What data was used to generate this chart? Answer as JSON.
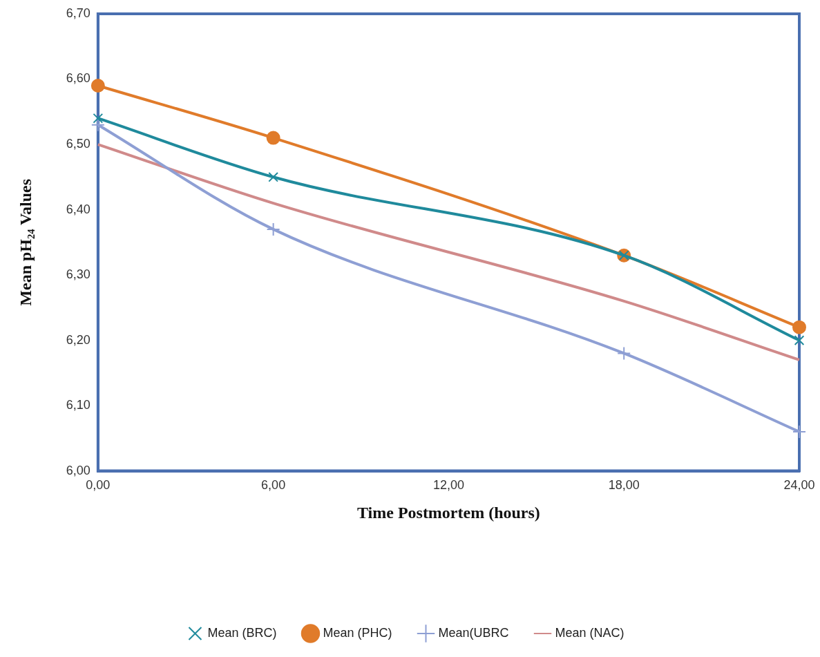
{
  "chart_data": {
    "type": "line",
    "xlabel": "Time Postmortem (hours)",
    "ylabel": "Mean pH₂₄ Values",
    "x": [
      0,
      6,
      18,
      24
    ],
    "series": [
      {
        "name": "Mean (BRC)",
        "color": "#1f8a9c",
        "marker": "cross",
        "values": [
          6.54,
          6.45,
          6.33,
          6.2
        ]
      },
      {
        "name": "Mean (PHC)",
        "color": "#e07b2a",
        "marker": "circle",
        "values": [
          6.59,
          6.51,
          6.33,
          6.22
        ]
      },
      {
        "name": "Mean(UBRC",
        "color": "#8e9fd4",
        "marker": "plus",
        "values": [
          6.53,
          6.37,
          6.18,
          6.06
        ]
      },
      {
        "name": "Mean (NAC)",
        "color": "#d08a8a",
        "marker": "none",
        "values": [
          6.5,
          6.41,
          6.26,
          6.17
        ]
      }
    ],
    "xlim": [
      0,
      24
    ],
    "xticks": [
      {
        "value": 0,
        "label": "0,00"
      },
      {
        "value": 6,
        "label": "6,00"
      },
      {
        "value": 12,
        "label": "12,00"
      },
      {
        "value": 18,
        "label": "18,00"
      },
      {
        "value": 24,
        "label": "24,00"
      }
    ],
    "ylim": [
      6.0,
      6.7
    ],
    "yticks": [
      {
        "value": 6.0,
        "label": "6,00"
      },
      {
        "value": 6.1,
        "label": "6,10"
      },
      {
        "value": 6.2,
        "label": "6,20"
      },
      {
        "value": 6.3,
        "label": "6,30"
      },
      {
        "value": 6.4,
        "label": "6,40"
      },
      {
        "value": 6.5,
        "label": "6,50"
      },
      {
        "value": 6.6,
        "label": "6,60"
      },
      {
        "value": 6.7,
        "label": "6,70"
      }
    ],
    "grid": false,
    "legend": "bottom",
    "line_style": "solid"
  }
}
